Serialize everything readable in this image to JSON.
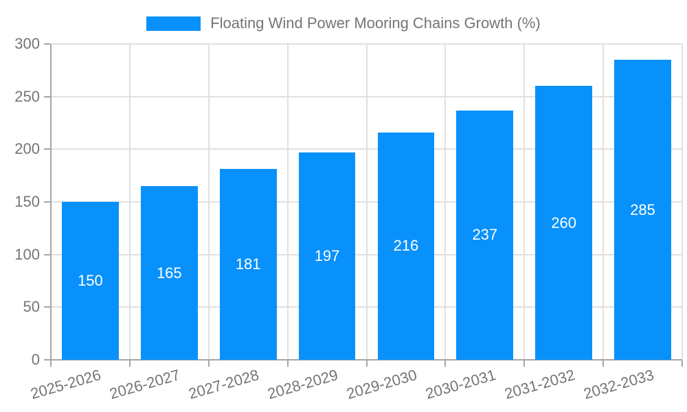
{
  "chart_data": {
    "type": "bar",
    "title": "Floating Wind Power Mooring Chains Growth (%)",
    "categories": [
      "2025-2026",
      "2026-2027",
      "2027-2028",
      "2028-2029",
      "2029-2030",
      "2030-2031",
      "2031-2032",
      "2032-2033"
    ],
    "values": [
      150,
      165,
      181,
      197,
      216,
      237,
      260,
      285
    ],
    "xlabel": "",
    "ylabel": "",
    "ylim": [
      0,
      300
    ],
    "yticks": [
      0,
      50,
      100,
      150,
      200,
      250,
      300
    ],
    "grid": true,
    "legend_position": "top-center",
    "value_labels": "inside-center",
    "colors": {
      "bar": "#0991FB",
      "value_label": "#FFFFFF",
      "axis": "#A6A6A6",
      "grid": "#E0E0E0",
      "text": "#757575",
      "background": "#FFFFFF"
    }
  }
}
